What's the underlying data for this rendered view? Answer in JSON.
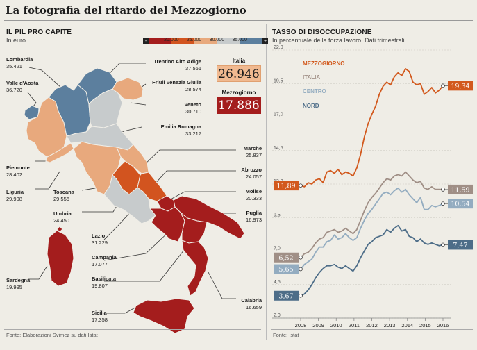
{
  "page": {
    "title": "La fotografia del ritardo del Mezzogiorno"
  },
  "left": {
    "title": "IL PIL PRO CAPITE",
    "subtitle": "In euro",
    "legend": {
      "ticks": [
        "20.000",
        "25.000",
        "30.000",
        "35.000"
      ],
      "minus": "-",
      "plus": "+",
      "colors": [
        "#a41d1d",
        "#d2541f",
        "#e8a97d",
        "#c7cbcc",
        "#5c7f9e"
      ]
    },
    "italia": {
      "label": "Italia",
      "value": "26.946"
    },
    "mezzogiorno": {
      "label": "Mezzogiorno",
      "value": "17.886"
    },
    "regions": [
      {
        "name": "Lombardia",
        "value": "35.421"
      },
      {
        "name": "Valle d'Aosta",
        "value": "36.720"
      },
      {
        "name": "Trentino Alto Adige",
        "value": "37.561"
      },
      {
        "name": "Friuli Venezia Giulia",
        "value": "28.574"
      },
      {
        "name": "Veneto",
        "value": "30.710"
      },
      {
        "name": "Emilia Romagna",
        "value": "33.217"
      },
      {
        "name": "Marche",
        "value": "25.837"
      },
      {
        "name": "Abruzzo",
        "value": "24.057"
      },
      {
        "name": "Molise",
        "value": "20.333"
      },
      {
        "name": "Puglia",
        "value": "16.973"
      },
      {
        "name": "Piemonte",
        "value": "28.402"
      },
      {
        "name": "Liguria",
        "value": "29.908"
      },
      {
        "name": "Toscana",
        "value": "29.556"
      },
      {
        "name": "Umbria",
        "value": "24.450"
      },
      {
        "name": "Lazio",
        "value": "31.229"
      },
      {
        "name": "Campania",
        "value": "17.077"
      },
      {
        "name": "Basilicata",
        "value": "19.807"
      },
      {
        "name": "Sardegna",
        "value": "19.995"
      },
      {
        "name": "Calabria",
        "value": "16.659"
      },
      {
        "name": "Sicilia",
        "value": "17.358"
      }
    ],
    "source": "Fonte: Elaborazioni Svimez su dati Istat"
  },
  "right": {
    "title": "TASSO DI DISOCCUPAZIONE",
    "subtitle": "In percentuale della forza lavoro. Dati trimestrali",
    "source": "Fonte: Istat"
  },
  "chart_data": {
    "type": "line",
    "title": "TASSO DI DISOCCUPAZIONE",
    "subtitle": "In percentuale della forza lavoro. Dati trimestrali",
    "ylim": [
      2.0,
      22.0
    ],
    "yticks": [
      "22,0",
      "19,5",
      "17,0",
      "14,5",
      "12,0",
      "9,5",
      "7,0",
      "4,5",
      "2,0"
    ],
    "x_labels": [
      "2008",
      "2009",
      "2010",
      "2011",
      "2012",
      "2013",
      "2014",
      "2015",
      "2016"
    ],
    "x_start": 2008.0,
    "x_end": 2016.0,
    "series": [
      {
        "name": "MEZZOGIORNO",
        "color": "#d2591d",
        "start_label": "11,89",
        "end_label": "19,34",
        "values": [
          11.89,
          11.8,
          12.1,
          12.0,
          12.3,
          12.4,
          12.1,
          12.9,
          13.0,
          12.8,
          13.1,
          12.7,
          12.9,
          12.8,
          12.6,
          13.2,
          14.2,
          15.5,
          16.5,
          17.2,
          17.8,
          18.7,
          19.3,
          19.6,
          19.4,
          20.0,
          20.3,
          20.1,
          20.6,
          20.4,
          19.6,
          19.4,
          19.5,
          18.7,
          18.9,
          19.2,
          18.8,
          19.0,
          19.34
        ]
      },
      {
        "name": "ITALIA",
        "color": "#a08f86",
        "start_label": "6,52",
        "end_label": "11,59",
        "values": [
          6.52,
          6.8,
          6.9,
          7.2,
          7.6,
          7.9,
          8.0,
          8.4,
          8.5,
          8.6,
          8.4,
          8.5,
          8.7,
          8.5,
          8.3,
          8.6,
          9.3,
          10.0,
          10.6,
          11.0,
          11.3,
          11.7,
          12.1,
          12.4,
          12.3,
          12.6,
          12.7,
          12.6,
          12.9,
          12.6,
          12.3,
          12.1,
          12.2,
          11.7,
          11.6,
          11.8,
          11.6,
          11.6,
          11.59
        ]
      },
      {
        "name": "CENTRO",
        "color": "#93acc0",
        "start_label": "5,65",
        "end_label": "10,54",
        "values": [
          5.65,
          6.0,
          6.2,
          6.4,
          6.9,
          7.3,
          7.3,
          7.7,
          7.8,
          8.2,
          7.9,
          8.0,
          8.3,
          8.0,
          7.8,
          8.0,
          8.7,
          9.3,
          9.8,
          10.1,
          10.5,
          10.9,
          11.3,
          11.4,
          11.2,
          11.5,
          11.7,
          11.4,
          11.6,
          11.2,
          10.9,
          10.6,
          11.0,
          10.1,
          10.1,
          10.4,
          10.3,
          10.4,
          10.54
        ]
      },
      {
        "name": "NORD",
        "color": "#4d6d88",
        "start_label": "3,67",
        "end_label": "7,47",
        "values": [
          3.67,
          3.8,
          4.1,
          4.5,
          5.0,
          5.4,
          5.7,
          5.9,
          5.9,
          6.0,
          5.8,
          5.7,
          5.9,
          5.7,
          5.5,
          5.9,
          6.5,
          7.0,
          7.5,
          7.7,
          8.0,
          8.1,
          8.2,
          8.6,
          8.4,
          8.7,
          8.9,
          8.5,
          8.6,
          8.1,
          8.0,
          7.7,
          7.9,
          7.6,
          7.5,
          7.6,
          7.5,
          7.4,
          7.47
        ]
      }
    ]
  }
}
